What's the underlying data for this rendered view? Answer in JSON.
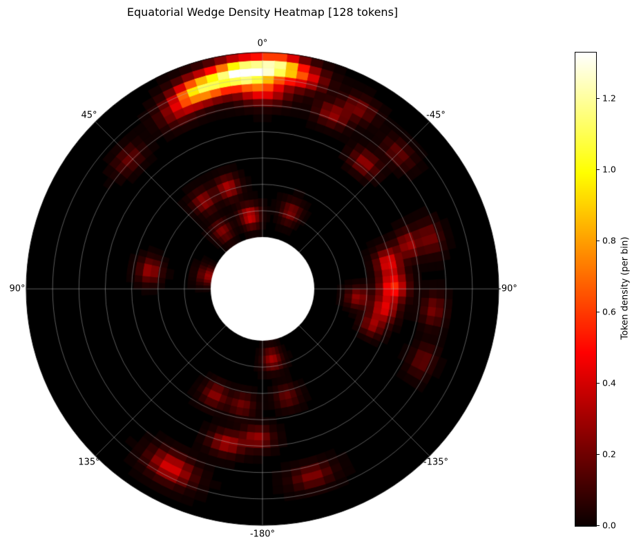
{
  "chart_data": {
    "type": "heatmap",
    "projection": "polar",
    "title": "Equatorial Wedge Density Heatmap [128 tokens]",
    "angle_ticks": [
      {
        "angle_deg": 0,
        "label": "0°"
      },
      {
        "angle_deg": 45,
        "label": "45°"
      },
      {
        "angle_deg": 90,
        "label": "90°"
      },
      {
        "angle_deg": 135,
        "label": "135°"
      },
      {
        "angle_deg": -180,
        "label": "-180°"
      },
      {
        "angle_deg": -135,
        "label": "-135°"
      },
      {
        "angle_deg": -90,
        "label": "-90°"
      },
      {
        "angle_deg": -45,
        "label": "-45°"
      }
    ],
    "colorbar": {
      "label": "Token density (per bin)",
      "ticks": [
        "0.0",
        "0.2",
        "0.4",
        "0.6",
        "0.8",
        "1.0",
        "1.2"
      ],
      "vmin": 0,
      "vmax": 1.33,
      "colormap": "hot"
    },
    "grid": {
      "radial_circles": 6,
      "spoke_step_deg": 45
    },
    "inner_radius_frac": 0.22,
    "bins": {
      "angular": 120,
      "radial": 24
    },
    "hotspot_fields": [
      "angle_deg",
      "radius_frac",
      "value",
      "sigma_deg",
      "sigma_radius_frac"
    ],
    "hotspots": [
      [
        5,
        0.9,
        1.35,
        5,
        0.05
      ],
      [
        0,
        0.8,
        0.5,
        5,
        0.05
      ],
      [
        15,
        0.86,
        0.85,
        4.5,
        0.05
      ],
      [
        -4,
        0.93,
        0.95,
        4,
        0.045
      ],
      [
        -11,
        0.89,
        0.45,
        4,
        0.045
      ],
      [
        21,
        0.84,
        0.45,
        4,
        0.05
      ],
      [
        26,
        0.79,
        0.22,
        4,
        0.05
      ],
      [
        -22,
        0.74,
        0.28,
        3.5,
        0.04
      ],
      [
        -28,
        0.83,
        0.22,
        3.5,
        0.04
      ],
      [
        -39,
        0.6,
        0.28,
        3.5,
        0.04
      ],
      [
        -45,
        0.76,
        0.18,
        3.5,
        0.04
      ],
      [
        -78,
        0.42,
        0.45,
        4,
        0.045
      ],
      [
        -89,
        0.43,
        0.55,
        4,
        0.05
      ],
      [
        -99,
        0.39,
        0.42,
        4,
        0.045
      ],
      [
        -73,
        0.55,
        0.3,
        3.5,
        0.04
      ],
      [
        -73,
        0.67,
        0.22,
        3.5,
        0.04
      ],
      [
        -108,
        0.35,
        0.28,
        3.5,
        0.04
      ],
      [
        -114,
        0.67,
        0.18,
        3.5,
        0.04
      ],
      [
        -97,
        0.655,
        0.22,
        3.5,
        0.04
      ],
      [
        -95,
        0.24,
        0.28,
        4,
        0.04
      ],
      [
        10,
        0.12,
        0.4,
        5,
        0.04
      ],
      [
        19,
        0.3,
        0.33,
        4,
        0.04
      ],
      [
        34,
        0.29,
        0.28,
        4,
        0.04
      ],
      [
        35,
        0.1,
        0.24,
        5,
        0.04
      ],
      [
        77,
        0.02,
        0.28,
        6,
        0.04
      ],
      [
        81,
        0.34,
        0.3,
        4,
        0.04
      ],
      [
        46,
        0.73,
        0.18,
        3.5,
        0.04
      ],
      [
        -20,
        0.16,
        0.24,
        4.5,
        0.04
      ],
      [
        -172,
        0.105,
        0.3,
        5,
        0.04
      ],
      [
        156,
        0.35,
        0.26,
        4,
        0.04
      ],
      [
        167,
        0.58,
        0.32,
        4,
        0.04
      ],
      [
        178,
        0.53,
        0.28,
        4,
        0.04
      ],
      [
        153,
        0.81,
        0.42,
        4.5,
        0.05
      ],
      [
        -165,
        0.77,
        0.24,
        4,
        0.04
      ],
      [
        170,
        0.36,
        0.2,
        4,
        0.04
      ],
      [
        -167,
        0.32,
        0.18,
        4,
        0.04
      ]
    ]
  },
  "colors": {
    "background": "#ffffff",
    "plot_background": "#000000",
    "grid_line": "#b2b2b2",
    "text": "#000000"
  }
}
